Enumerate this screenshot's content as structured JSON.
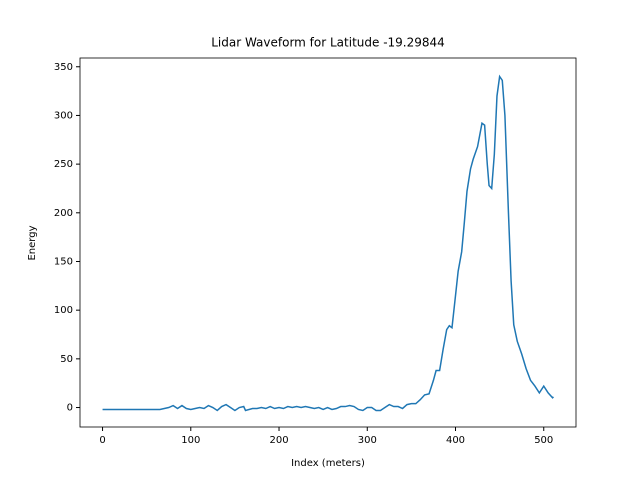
{
  "chart_data": {
    "type": "line",
    "title": "Lidar Waveform for Latitude -19.29844",
    "x_label": "Index (meters)",
    "y_label": "Energy",
    "color": "#1f77b4",
    "x": [
      0,
      10,
      20,
      30,
      40,
      50,
      60,
      65,
      70,
      75,
      80,
      85,
      90,
      95,
      100,
      105,
      110,
      115,
      120,
      125,
      130,
      135,
      140,
      145,
      150,
      155,
      160,
      162,
      170,
      175,
      180,
      185,
      190,
      195,
      200,
      205,
      210,
      215,
      220,
      225,
      230,
      235,
      240,
      245,
      250,
      255,
      260,
      265,
      270,
      275,
      280,
      285,
      290,
      295,
      300,
      305,
      310,
      315,
      320,
      325,
      330,
      335,
      340,
      345,
      350,
      355,
      360,
      365,
      370,
      375,
      378,
      382,
      386,
      390,
      393,
      396,
      400,
      403,
      407,
      410,
      413,
      417,
      420,
      425,
      430,
      433,
      436,
      438,
      441,
      444,
      447,
      450,
      453,
      456,
      460,
      463,
      466,
      470,
      475,
      480,
      485,
      490,
      495,
      500,
      505,
      510,
      511
    ],
    "values": [
      -2,
      -2,
      -2,
      -2,
      -2,
      -2,
      -2,
      -2,
      -1,
      0,
      2,
      -1,
      2,
      -1,
      -2,
      -1,
      0,
      -1,
      2,
      0,
      -3,
      1,
      3,
      0,
      -3,
      0,
      1,
      -3,
      -1,
      -1,
      0,
      -1,
      1,
      -1,
      0,
      -1,
      1,
      0,
      1,
      0,
      1,
      0,
      -1,
      0,
      -2,
      0,
      -2,
      -1,
      1,
      1,
      2,
      1,
      -2,
      -3,
      0,
      0,
      -3,
      -3,
      0,
      3,
      1,
      1,
      -1,
      3,
      4,
      4,
      8,
      13,
      14,
      28,
      38,
      38,
      60,
      80,
      84,
      82,
      115,
      140,
      160,
      190,
      222,
      245,
      255,
      268,
      292,
      290,
      250,
      228,
      225,
      260,
      320,
      340,
      336,
      300,
      200,
      130,
      85,
      68,
      55,
      40,
      28,
      22,
      15,
      22,
      15,
      10,
      11
    ],
    "xlim": [
      -25.55,
      536.55
    ],
    "ylim": [
      -20,
      359
    ],
    "xticks": [
      0,
      100,
      200,
      300,
      400,
      500
    ],
    "yticks": [
      0,
      50,
      100,
      150,
      200,
      250,
      300,
      350
    ]
  }
}
